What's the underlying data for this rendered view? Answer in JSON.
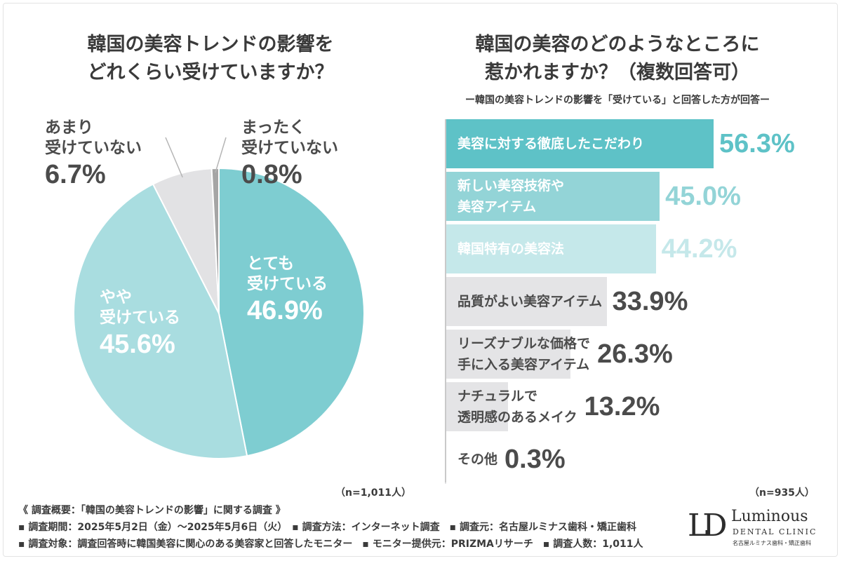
{
  "left_title": [
    "韓国の美容トレンドの影響を",
    "どれくらい受けていますか？"
  ],
  "right_title": [
    "韓国の美容のどのようなところに",
    "惹かれますか？（複数回答可）"
  ],
  "right_subtitle": "ー韓国の美容トレンドの影響を「受けている」と回答した方が回答ー",
  "pie_n": "（n=1,011人）",
  "bar_n": "（n=935人）",
  "footer": {
    "line1": "《 調査概要：「韓国の美容トレンドの影響」に関する調査 》",
    "line2": "▪ 調査期間：2025年5月2日（金）〜2025年5月6日（火）　▪ 調査方法：インターネット調査　▪ 調査元：名古屋ルミナス歯科・矯正歯科",
    "line3": "▪ 調査対象：調査回答時に韓国美容に関心のある美容家と回答したモニター　▪ モニター提供元：PRIZMAリサーチ　▪ 調査人数：1,011人"
  },
  "logo": {
    "mark": "LD",
    "name": "Luminous",
    "sub": "DENTAL CLINIC",
    "jp": "名古屋ルミナス歯科・矯正歯科"
  },
  "chart_data": [
    {
      "type": "pie",
      "title": "韓国の美容トレンドの影響をどれくらい受けていますか？",
      "slices": [
        {
          "label_lines": [
            "とても",
            "受けている"
          ],
          "value": 46.9,
          "pct_text": "46.9%",
          "color": "#7ecdd1"
        },
        {
          "label_lines": [
            "やや",
            "受けている"
          ],
          "value": 45.6,
          "pct_text": "45.6%",
          "color": "#a9dde0"
        },
        {
          "label_lines": [
            "あまり",
            "受けていない"
          ],
          "value": 6.7,
          "pct_text": "6.7%",
          "color": "#e2e2e4"
        },
        {
          "label_lines": [
            "まったく",
            "受けていない"
          ],
          "value": 0.8,
          "pct_text": "0.8%",
          "color": "#a5a5a5"
        }
      ]
    },
    {
      "type": "bar",
      "orientation": "horizontal",
      "title": "韓国の美容のどのようなところに惹かれますか？（複数回答可）",
      "xlim": [
        0,
        100
      ],
      "bars": [
        {
          "label_lines": [
            "美容に対する徹底したこだわり"
          ],
          "value": 56.3,
          "value_text": "56.3%",
          "fill": "#5ec2c7",
          "label_color": "#ffffff",
          "value_color": "#5ec2c7"
        },
        {
          "label_lines": [
            "新しい美容技術や",
            "美容アイテム"
          ],
          "value": 45.0,
          "value_text": "45.0%",
          "fill": "#93d4d7",
          "label_color": "#ffffff",
          "value_color": "#93d4d7"
        },
        {
          "label_lines": [
            "韓国特有の美容法"
          ],
          "value": 44.2,
          "value_text": "44.2%",
          "fill": "#c5e8ea",
          "label_color": "#ffffff",
          "value_color": "#c5e8ea"
        },
        {
          "label_lines": [
            "品質がよい美容アイテム"
          ],
          "value": 33.9,
          "value_text": "33.9%",
          "fill": "#e4e4e6",
          "label_color": "#4b4b4b",
          "value_color": "#4b4b4b"
        },
        {
          "label_lines": [
            "リーズナブルな価格で",
            "手に入る美容アイテム"
          ],
          "value": 26.3,
          "value_text": "26.3%",
          "fill": "#e4e4e6",
          "label_color": "#4b4b4b",
          "value_color": "#4b4b4b"
        },
        {
          "label_lines": [
            "ナチュラルで",
            "透明感のあるメイク"
          ],
          "value": 13.2,
          "value_text": "13.2%",
          "fill": "#e4e4e6",
          "label_color": "#4b4b4b",
          "value_color": "#4b4b4b"
        },
        {
          "label_lines": [
            "その他"
          ],
          "value": 0.3,
          "value_text": "0.3%",
          "fill": "#e4e4e6",
          "label_color": "#4b4b4b",
          "value_color": "#4b4b4b"
        }
      ]
    }
  ]
}
